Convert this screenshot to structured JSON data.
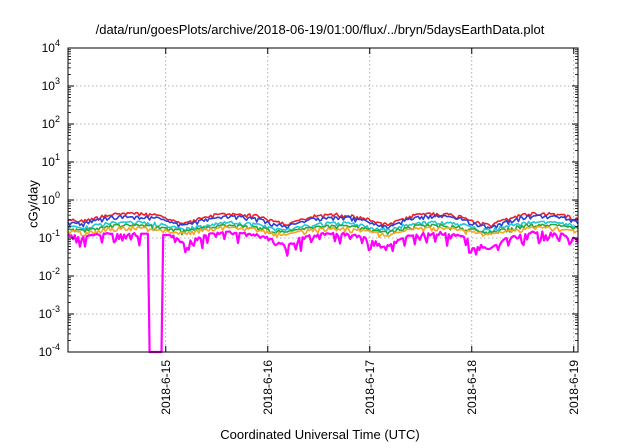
{
  "chart_data": {
    "type": "line",
    "title": "/data/run/goesPlots/archive/2018-06-19/01:00/flux/../bryn/5daysEarthData.plot",
    "xlabel": "Coordinated Universal Time (UTC)",
    "ylabel": "cGy/day",
    "yscale": "log",
    "ylim": [
      0.0001,
      10000
    ],
    "xlim": [
      "2018-06-14 01:00",
      "2018-06-19 01:00"
    ],
    "y_ticks": [
      {
        "base": "10",
        "exp": "4"
      },
      {
        "base": "10",
        "exp": "3"
      },
      {
        "base": "10",
        "exp": "2"
      },
      {
        "base": "10",
        "exp": "1"
      },
      {
        "base": "10",
        "exp": "0"
      },
      {
        "base": "10",
        "exp": "-1"
      },
      {
        "base": "10",
        "exp": "-2"
      },
      {
        "base": "10",
        "exp": "-3"
      },
      {
        "base": "10",
        "exp": "-4"
      }
    ],
    "x_ticks": [
      "2018-6-15",
      "2018-6-16",
      "2018-6-17",
      "2018-6-18",
      "2018-6-19"
    ],
    "grid": true,
    "series": [
      {
        "color": "#e8202a",
        "values": [
          0.3,
          0.28,
          0.35,
          0.42,
          0.45,
          0.44,
          0.4,
          0.3,
          0.24,
          0.32,
          0.4,
          0.43,
          0.42,
          0.38,
          0.28,
          0.23,
          0.3,
          0.38,
          0.42,
          0.41,
          0.36,
          0.27,
          0.22,
          0.32,
          0.42,
          0.44,
          0.42,
          0.37,
          0.27,
          0.22,
          0.3,
          0.4,
          0.44,
          0.44,
          0.4,
          0.33
        ]
      },
      {
        "color": "#2b3fd6",
        "values": [
          0.26,
          0.24,
          0.3,
          0.36,
          0.38,
          0.37,
          0.34,
          0.26,
          0.21,
          0.28,
          0.34,
          0.37,
          0.36,
          0.32,
          0.24,
          0.2,
          0.26,
          0.33,
          0.36,
          0.35,
          0.31,
          0.23,
          0.19,
          0.28,
          0.36,
          0.38,
          0.36,
          0.32,
          0.23,
          0.19,
          0.26,
          0.34,
          0.38,
          0.38,
          0.34,
          0.28
        ]
      },
      {
        "color": "#22c7d4",
        "values": [
          0.2,
          0.19,
          0.22,
          0.25,
          0.26,
          0.26,
          0.24,
          0.2,
          0.17,
          0.21,
          0.24,
          0.26,
          0.25,
          0.23,
          0.19,
          0.16,
          0.2,
          0.23,
          0.25,
          0.25,
          0.22,
          0.18,
          0.16,
          0.21,
          0.25,
          0.26,
          0.25,
          0.23,
          0.18,
          0.16,
          0.2,
          0.24,
          0.26,
          0.26,
          0.24,
          0.21
        ]
      },
      {
        "color": "#26a83a",
        "values": [
          0.17,
          0.16,
          0.18,
          0.21,
          0.22,
          0.22,
          0.2,
          0.17,
          0.15,
          0.18,
          0.2,
          0.22,
          0.21,
          0.19,
          0.16,
          0.14,
          0.17,
          0.19,
          0.21,
          0.21,
          0.19,
          0.16,
          0.14,
          0.18,
          0.21,
          0.22,
          0.21,
          0.19,
          0.16,
          0.14,
          0.17,
          0.2,
          0.22,
          0.22,
          0.2,
          0.18
        ]
      },
      {
        "color": "#f5a623",
        "values": [
          0.15,
          0.14,
          0.16,
          0.18,
          0.19,
          0.19,
          0.17,
          0.15,
          0.13,
          0.16,
          0.18,
          0.19,
          0.18,
          0.17,
          0.14,
          0.12,
          0.15,
          0.17,
          0.18,
          0.18,
          0.16,
          0.14,
          0.12,
          0.15,
          0.18,
          0.19,
          0.18,
          0.16,
          0.14,
          0.12,
          0.15,
          0.17,
          0.19,
          0.19,
          0.17,
          0.15
        ]
      },
      {
        "color": "#ff00ff",
        "values": [
          0.12,
          0.1,
          0.12,
          0.13,
          0.12,
          0.13,
          0.0001,
          0.12,
          0.07,
          0.1,
          0.13,
          0.14,
          0.13,
          0.12,
          0.09,
          0.06,
          0.1,
          0.12,
          0.13,
          0.13,
          0.11,
          0.08,
          0.06,
          0.1,
          0.13,
          0.14,
          0.13,
          0.11,
          0.07,
          0.05,
          0.09,
          0.12,
          0.14,
          0.14,
          0.12,
          0.09
        ]
      }
    ]
  }
}
